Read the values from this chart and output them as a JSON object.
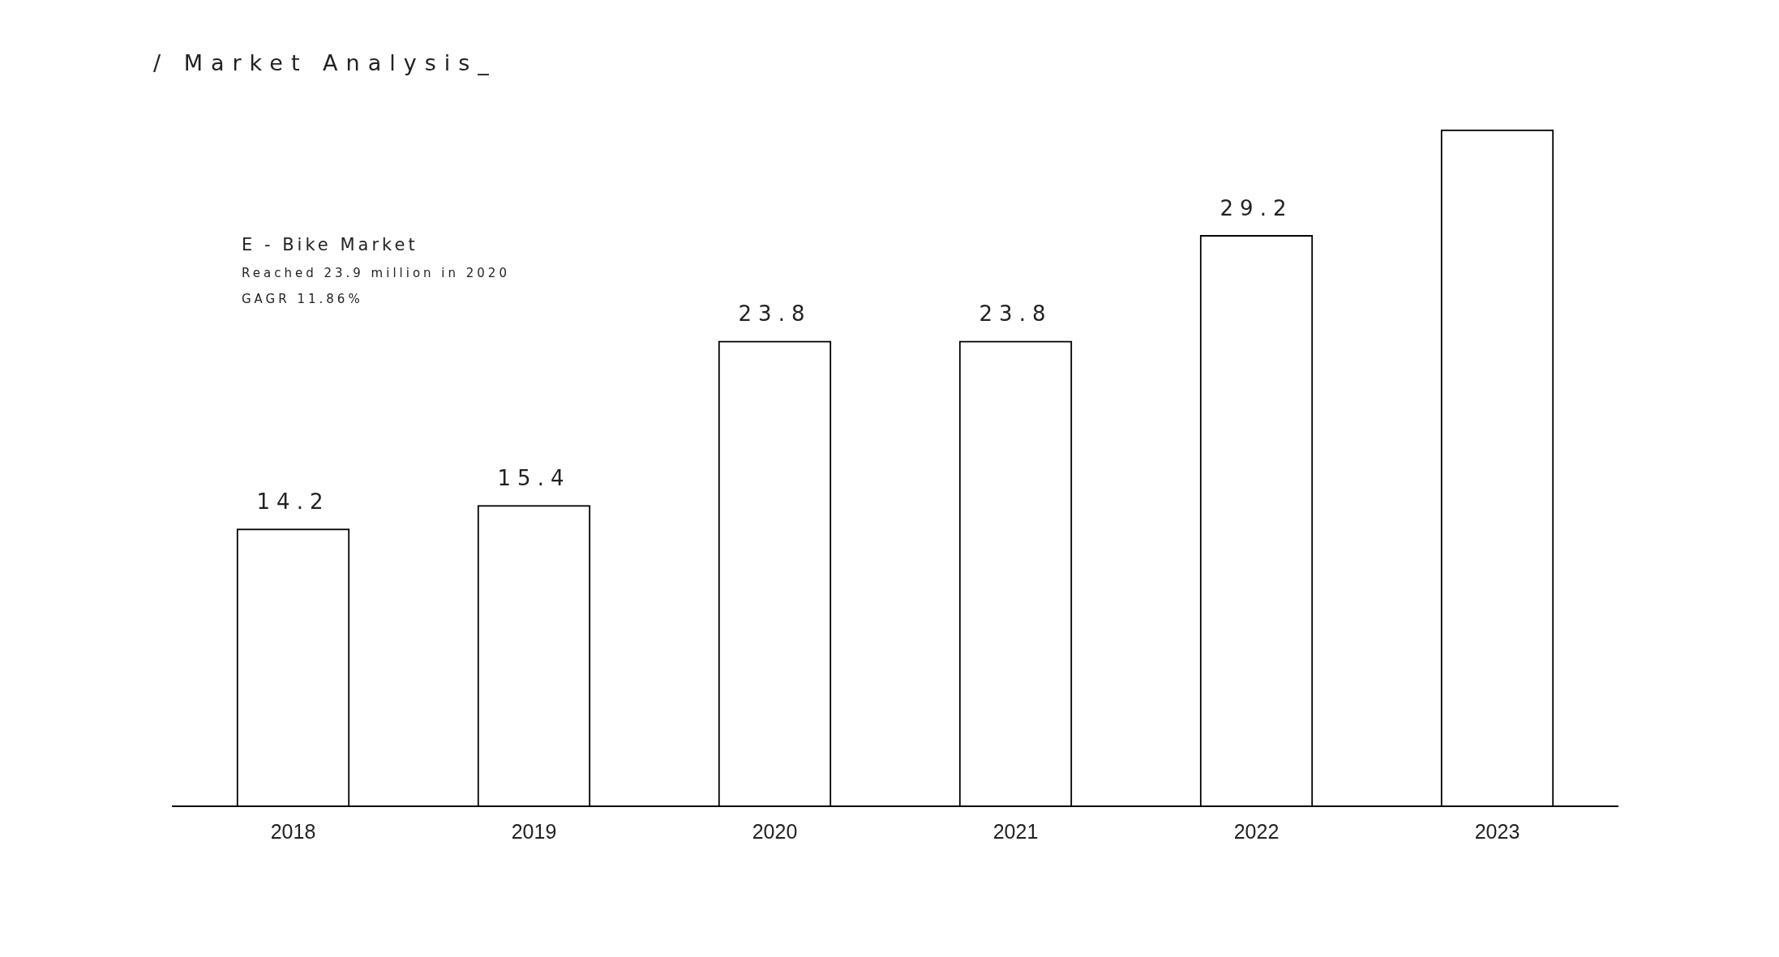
{
  "chart_data": {
    "type": "bar",
    "title": "/ Market Analysis_",
    "annotations": [
      "E - Bike Market",
      "Reached 23.9 million in 2020",
      "GAGR 11.86%"
    ],
    "categories": [
      "2018",
      "2019",
      "2020",
      "2021",
      "2022",
      "2023"
    ],
    "values": [
      14.2,
      15.4,
      23.8,
      23.8,
      29.2,
      34.6
    ],
    "value_labels": [
      "14.2",
      "15.4",
      "23.8",
      "23.8",
      "29.2",
      null
    ],
    "color": "#000000",
    "grid": false,
    "legend": false,
    "tick_labels": "x"
  }
}
